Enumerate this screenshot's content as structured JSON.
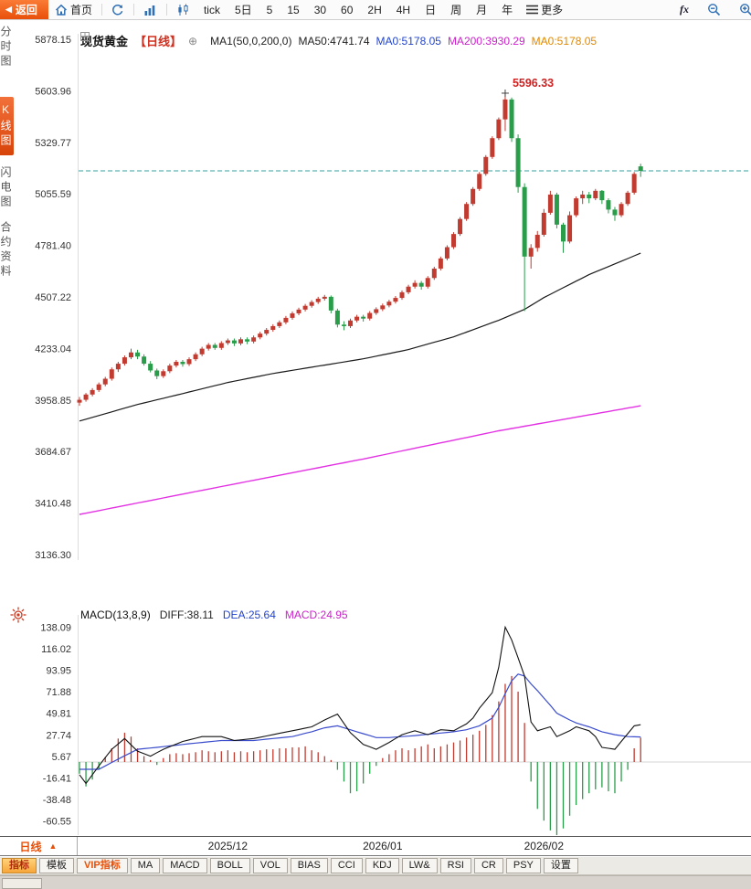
{
  "toolbar": {
    "back_label": "返回",
    "home_label": "首页",
    "periods": [
      "tick",
      "5日",
      "5",
      "15",
      "30",
      "60",
      "2H",
      "4H",
      "日",
      "周",
      "月",
      "年"
    ],
    "more_label": "更多",
    "fx_label": "fx"
  },
  "sidebar": {
    "items": [
      {
        "label": "分时图",
        "active": false
      },
      {
        "label": "K线图",
        "active": true
      },
      {
        "label": "闪电图",
        "active": false
      },
      {
        "label": "合约资料",
        "active": false
      }
    ]
  },
  "main_header": {
    "symbol": "现货黄金",
    "period_tag": "【日线】",
    "ma_config": "MA1(50,0,200,0)",
    "ma50_label": "MA50:4741.74",
    "ma0_blue_label": "MA0:5178.05",
    "ma200_label": "MA200:3930.29",
    "ma0_orange_label": "MA0:5178.05"
  },
  "macd_header": {
    "title": "MACD(13,8,9)",
    "diff_label": "DIFF:38.11",
    "dea_label": "DEA:25.64",
    "macd_label": "MACD:24.95"
  },
  "bottom_bar": {
    "period_label": "日线"
  },
  "tabs": [
    {
      "label": "指标",
      "style": "active"
    },
    {
      "label": "模板",
      "style": ""
    },
    {
      "label": "VIP指标",
      "style": "vip"
    },
    {
      "label": "MA",
      "style": ""
    },
    {
      "label": "MACD",
      "style": ""
    },
    {
      "label": "BOLL",
      "style": ""
    },
    {
      "label": "VOL",
      "style": ""
    },
    {
      "label": "BIAS",
      "style": ""
    },
    {
      "label": "CCI",
      "style": ""
    },
    {
      "label": "KDJ",
      "style": ""
    },
    {
      "label": "LW&",
      "style": ""
    },
    {
      "label": "RSI",
      "style": ""
    },
    {
      "label": "CR",
      "style": ""
    },
    {
      "label": "PSY",
      "style": ""
    },
    {
      "label": "设置",
      "style": ""
    }
  ],
  "chart_data": {
    "type": "candlestick",
    "symbol": "现货黄金",
    "period": "日线",
    "y_axis_main": {
      "ticks": [
        "5878.15",
        "5603.96",
        "5329.77",
        "5055.59",
        "4781.40",
        "4507.22",
        "4233.04",
        "3958.85",
        "3684.67",
        "3410.48",
        "3136.30"
      ]
    },
    "x_axis": {
      "count": 88,
      "labels": [
        {
          "label": "2025/12",
          "index": 23
        },
        {
          "label": "2026/01",
          "index": 47
        },
        {
          "label": "2026/02",
          "index": 72
        }
      ]
    },
    "current_price_line": 5178.05,
    "peak_label": {
      "text": "5596.33",
      "index": 66,
      "price": 5596.33
    },
    "candles_ohlc": [
      [
        3945,
        3975,
        3928,
        3960
      ],
      [
        3960,
        3996,
        3950,
        3988
      ],
      [
        3988,
        4022,
        3978,
        4012
      ],
      [
        4012,
        4052,
        4002,
        4042
      ],
      [
        4042,
        4082,
        4032,
        4072
      ],
      [
        4072,
        4132,
        4062,
        4122
      ],
      [
        4122,
        4162,
        4108,
        4152
      ],
      [
        4152,
        4196,
        4142,
        4186
      ],
      [
        4186,
        4232,
        4176,
        4212
      ],
      [
        4212,
        4226,
        4176,
        4190
      ],
      [
        4190,
        4202,
        4142,
        4152
      ],
      [
        4152,
        4166,
        4106,
        4116
      ],
      [
        4116,
        4126,
        4070,
        4086
      ],
      [
        4086,
        4122,
        4076,
        4112
      ],
      [
        4112,
        4152,
        4102,
        4142
      ],
      [
        4142,
        4172,
        4132,
        4162
      ],
      [
        4162,
        4172,
        4136,
        4150
      ],
      [
        4150,
        4186,
        4140,
        4176
      ],
      [
        4176,
        4212,
        4166,
        4202
      ],
      [
        4202,
        4242,
        4192,
        4232
      ],
      [
        4232,
        4262,
        4222,
        4252
      ],
      [
        4252,
        4262,
        4226,
        4236
      ],
      [
        4236,
        4272,
        4226,
        4262
      ],
      [
        4262,
        4286,
        4252,
        4276
      ],
      [
        4276,
        4286,
        4246,
        4260
      ],
      [
        4260,
        4292,
        4250,
        4282
      ],
      [
        4282,
        4292,
        4256,
        4270
      ],
      [
        4270,
        4302,
        4260,
        4292
      ],
      [
        4292,
        4322,
        4282,
        4312
      ],
      [
        4312,
        4342,
        4302,
        4332
      ],
      [
        4332,
        4362,
        4322,
        4352
      ],
      [
        4352,
        4382,
        4342,
        4372
      ],
      [
        4372,
        4406,
        4362,
        4396
      ],
      [
        4396,
        4430,
        4386,
        4420
      ],
      [
        4420,
        4450,
        4410,
        4440
      ],
      [
        4440,
        4470,
        4430,
        4460
      ],
      [
        4460,
        4490,
        4450,
        4480
      ],
      [
        4480,
        4508,
        4470,
        4498
      ],
      [
        4498,
        4518,
        4488,
        4508
      ],
      [
        4508,
        4515,
        4420,
        4435
      ],
      [
        4435,
        4445,
        4345,
        4360
      ],
      [
        4360,
        4378,
        4330,
        4352
      ],
      [
        4352,
        4392,
        4342,
        4382
      ],
      [
        4382,
        4412,
        4372,
        4402
      ],
      [
        4402,
        4412,
        4376,
        4392
      ],
      [
        4392,
        4432,
        4382,
        4422
      ],
      [
        4422,
        4452,
        4412,
        4442
      ],
      [
        4442,
        4472,
        4432,
        4462
      ],
      [
        4462,
        4492,
        4452,
        4482
      ],
      [
        4482,
        4512,
        4472,
        4502
      ],
      [
        4502,
        4542,
        4492,
        4532
      ],
      [
        4532,
        4572,
        4522,
        4562
      ],
      [
        4562,
        4596,
        4552,
        4582
      ],
      [
        4582,
        4592,
        4546,
        4562
      ],
      [
        4562,
        4618,
        4552,
        4608
      ],
      [
        4608,
        4668,
        4598,
        4658
      ],
      [
        4658,
        4722,
        4648,
        4712
      ],
      [
        4712,
        4782,
        4702,
        4772
      ],
      [
        4772,
        4852,
        4762,
        4842
      ],
      [
        4842,
        4932,
        4832,
        4922
      ],
      [
        4922,
        5012,
        4912,
        5002
      ],
      [
        5002,
        5092,
        4992,
        5082
      ],
      [
        5082,
        5172,
        5072,
        5162
      ],
      [
        5162,
        5262,
        5152,
        5252
      ],
      [
        5252,
        5362,
        5242,
        5352
      ],
      [
        5352,
        5462,
        5342,
        5452
      ],
      [
        5452,
        5596.33,
        5390,
        5558
      ],
      [
        5558,
        5568,
        5332,
        5352
      ],
      [
        5352,
        5372,
        5062,
        5092
      ],
      [
        5092,
        5112,
        4432,
        4722
      ],
      [
        4722,
        4788,
        4658,
        4768
      ],
      [
        4768,
        4858,
        4748,
        4838
      ],
      [
        4838,
        4975,
        4828,
        4955
      ],
      [
        4955,
        5072,
        4945,
        5052
      ],
      [
        5052,
        5062,
        4872,
        4892
      ],
      [
        4892,
        4902,
        4742,
        4802
      ],
      [
        4802,
        4962,
        4792,
        4942
      ],
      [
        4942,
        5042,
        4932,
        5032
      ],
      [
        5032,
        5072,
        5002,
        5052
      ],
      [
        5052,
        5066,
        5006,
        5032
      ],
      [
        5032,
        5082,
        5022,
        5072
      ],
      [
        5072,
        5076,
        5002,
        5022
      ],
      [
        5022,
        5032,
        4952,
        4972
      ],
      [
        4972,
        4986,
        4912,
        4942
      ],
      [
        4942,
        5012,
        4932,
        5002
      ],
      [
        5002,
        5072,
        4992,
        5062
      ],
      [
        5062,
        5172,
        5052,
        5162
      ],
      [
        5202,
        5216,
        5146,
        5178
      ]
    ],
    "ma50": {
      "label": "MA50",
      "value": 4741.74,
      "points": [
        [
          0,
          3847
        ],
        [
          9,
          3935
        ],
        [
          16,
          3993
        ],
        [
          23,
          4052
        ],
        [
          30,
          4100
        ],
        [
          37,
          4139
        ],
        [
          44,
          4178
        ],
        [
          51,
          4227
        ],
        [
          58,
          4295
        ],
        [
          65,
          4383
        ],
        [
          69,
          4441
        ],
        [
          72,
          4504
        ],
        [
          79,
          4626
        ],
        [
          87,
          4740
        ]
      ]
    },
    "ma200": {
      "label": "MA200",
      "value": 3930.29,
      "points": [
        [
          0,
          3350
        ],
        [
          20,
          3485
        ],
        [
          44,
          3645
        ],
        [
          65,
          3795
        ],
        [
          87,
          3928
        ]
      ]
    },
    "macd": {
      "params": "13,8,9",
      "diff": 38.11,
      "dea": 25.64,
      "macd": 24.95,
      "y_ticks": [
        "138.09",
        "116.02",
        "93.95",
        "71.88",
        "49.81",
        "27.74",
        "5.67",
        "-16.41",
        "-38.48",
        "-60.55"
      ],
      "diff_points": [
        [
          0,
          -13
        ],
        [
          1,
          -22
        ],
        [
          3,
          -4
        ],
        [
          5,
          13
        ],
        [
          7,
          24
        ],
        [
          9,
          11
        ],
        [
          11,
          6
        ],
        [
          13,
          13
        ],
        [
          16,
          21
        ],
        [
          19,
          26
        ],
        [
          22,
          26
        ],
        [
          24,
          22
        ],
        [
          27,
          24
        ],
        [
          30,
          28
        ],
        [
          33,
          32
        ],
        [
          36,
          36
        ],
        [
          38,
          43
        ],
        [
          40,
          49
        ],
        [
          42,
          30
        ],
        [
          44,
          18
        ],
        [
          46,
          13
        ],
        [
          48,
          20
        ],
        [
          50,
          28
        ],
        [
          52,
          32
        ],
        [
          54,
          28
        ],
        [
          56,
          33
        ],
        [
          58,
          32
        ],
        [
          60,
          39
        ],
        [
          61,
          45
        ],
        [
          62,
          55
        ],
        [
          64,
          71
        ],
        [
          65,
          97
        ],
        [
          66,
          138
        ],
        [
          67,
          125
        ],
        [
          69,
          88
        ],
        [
          70,
          41
        ],
        [
          71,
          32
        ],
        [
          73,
          36
        ],
        [
          74,
          26
        ],
        [
          76,
          32
        ],
        [
          77,
          36
        ],
        [
          79,
          32
        ],
        [
          80,
          26
        ],
        [
          81,
          15
        ],
        [
          83,
          13
        ],
        [
          84,
          21
        ],
        [
          86,
          37
        ],
        [
          87,
          38.11
        ]
      ],
      "dea_points": [
        [
          0,
          -7.5
        ],
        [
          3,
          -7.5
        ],
        [
          6,
          3
        ],
        [
          9,
          13
        ],
        [
          12,
          15
        ],
        [
          16,
          18
        ],
        [
          19,
          20
        ],
        [
          22,
          22
        ],
        [
          27,
          22
        ],
        [
          30,
          24
        ],
        [
          33,
          26
        ],
        [
          36,
          31
        ],
        [
          38,
          35
        ],
        [
          40,
          37
        ],
        [
          42,
          33
        ],
        [
          44,
          29
        ],
        [
          46,
          25
        ],
        [
          48,
          25
        ],
        [
          50,
          26
        ],
        [
          52,
          27
        ],
        [
          55,
          29
        ],
        [
          58,
          31
        ],
        [
          60,
          33
        ],
        [
          62,
          37
        ],
        [
          64,
          45
        ],
        [
          65,
          56
        ],
        [
          66,
          70
        ],
        [
          67,
          83
        ],
        [
          68,
          90
        ],
        [
          69,
          88
        ],
        [
          70,
          80
        ],
        [
          71,
          73
        ],
        [
          73,
          58
        ],
        [
          74,
          50
        ],
        [
          76,
          43
        ],
        [
          77,
          40
        ],
        [
          79,
          36
        ],
        [
          81,
          31
        ],
        [
          83,
          28
        ],
        [
          85,
          26
        ],
        [
          87,
          25.64
        ]
      ],
      "hist": [
        -12,
        -25,
        -18,
        -8,
        5,
        14,
        24,
        30,
        26,
        14,
        6,
        2,
        -3,
        4,
        8,
        9,
        8,
        9,
        10,
        12,
        11,
        10,
        11,
        12,
        10,
        11,
        10,
        11,
        12,
        13,
        13,
        14,
        14,
        15,
        15,
        16,
        12,
        10,
        6,
        2,
        -8,
        -20,
        -32,
        -30,
        -22,
        -12,
        -4,
        4,
        8,
        12,
        14,
        12,
        14,
        16,
        18,
        14,
        16,
        18,
        20,
        22,
        25,
        28,
        32,
        38,
        48,
        62,
        80,
        88,
        72,
        40,
        -20,
        -48,
        -60,
        -70,
        -75,
        -68,
        -55,
        -44,
        -38,
        -32,
        -28,
        -26,
        -30,
        -32,
        -20,
        -8,
        14,
        24.95
      ]
    },
    "colors": {
      "up": "#c13b30",
      "down": "#2a9d4a",
      "ma50": "#1a1a1a",
      "ma200": "#e332e3",
      "diff": "#111111",
      "dea": "#3a4ccc",
      "price_line": "#3d9f9f",
      "annotation": "#cc2222",
      "accent": "#e8500a"
    }
  }
}
